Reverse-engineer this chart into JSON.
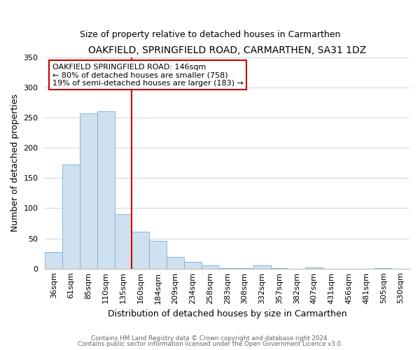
{
  "title": "OAKFIELD, SPRINGFIELD ROAD, CARMARTHEN, SA31 1DZ",
  "subtitle": "Size of property relative to detached houses in Carmarthen",
  "xlabel": "Distribution of detached houses by size in Carmarthen",
  "ylabel": "Number of detached properties",
  "bin_labels": [
    "36sqm",
    "61sqm",
    "85sqm",
    "110sqm",
    "135sqm",
    "160sqm",
    "184sqm",
    "209sqm",
    "234sqm",
    "258sqm",
    "283sqm",
    "308sqm",
    "332sqm",
    "357sqm",
    "382sqm",
    "407sqm",
    "431sqm",
    "456sqm",
    "481sqm",
    "505sqm",
    "530sqm"
  ],
  "bar_heights": [
    28,
    172,
    257,
    260,
    90,
    61,
    46,
    20,
    11,
    6,
    1,
    1,
    5,
    1,
    0,
    2,
    0,
    0,
    0,
    1,
    0
  ],
  "bar_color": "#cfe0ef",
  "bar_edge_color": "#7aafd4",
  "ylim": [
    0,
    350
  ],
  "yticks": [
    0,
    50,
    100,
    150,
    200,
    250,
    300,
    350
  ],
  "vline_color": "#cc0000",
  "vline_x_index": 4.5,
  "annotation_title": "OAKFIELD SPRINGFIELD ROAD: 146sqm",
  "annotation_line1": "← 80% of detached houses are smaller (758)",
  "annotation_line2": "19% of semi-detached houses are larger (183) →",
  "annotation_box_color": "#ffffff",
  "annotation_box_edge": "#cc0000",
  "footer1": "Contains HM Land Registry data © Crown copyright and database right 2024.",
  "footer2": "Contains public sector information licensed under the Open Government Licence v3.0.",
  "background_color": "#ffffff",
  "grid_color": "#d0d8e8",
  "title_fontsize": 10,
  "subtitle_fontsize": 9,
  "ylabel_fontsize": 9,
  "xlabel_fontsize": 9,
  "tick_fontsize": 8,
  "annotation_fontsize": 8
}
